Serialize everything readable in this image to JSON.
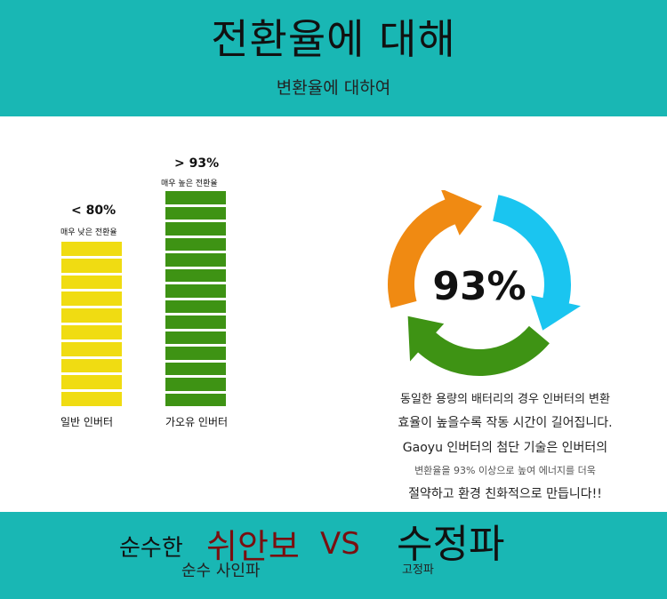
{
  "header": {
    "title": "전환율에 대해",
    "subtitle": "변환율에 대하여"
  },
  "bars": [
    {
      "percent_label": "< 80%",
      "caption": "매우 낮은 전환율",
      "name": "일반 인버터",
      "segments": 10,
      "color": "#f0dc12"
    },
    {
      "percent_label": "> 93%",
      "caption": "매우 높은 전환율",
      "name": "가오유 인버터",
      "segments": 14,
      "color": "#3e9314"
    }
  ],
  "cycle": {
    "value_label": "93%",
    "colors": [
      "#f08a12",
      "#1ac5f0",
      "#3e9314"
    ]
  },
  "description": {
    "lines": [
      "동일한 용량의 배터리의 경우 인버터의 변환",
      "효율이 높을수록 작동 시간이 길어집니다.",
      "Gaoyu 인버터의 첨단 기술은 인버터의",
      "변환율을 93% 이상으로 높여 에너지를 더욱",
      "절약하고 환경 친화적으로 만듭니다!!"
    ]
  },
  "footer": {
    "pure_label": "순수한",
    "pure_cn": "쉬안보",
    "vs": "VS",
    "square_cn": "수정파",
    "pure_sub": "순수 사인파",
    "square_sub": "고정파"
  }
}
